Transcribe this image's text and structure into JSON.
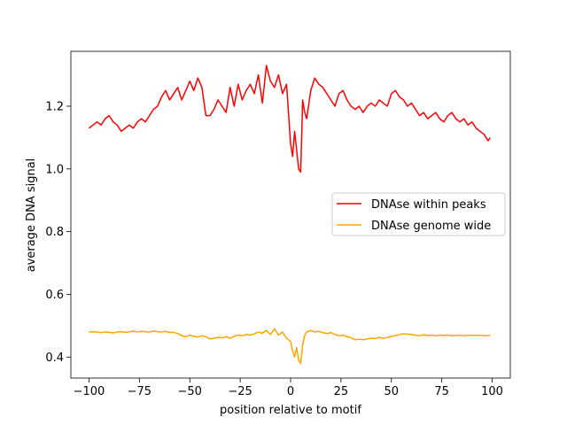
{
  "chart_data": {
    "type": "line",
    "title": "",
    "xlabel": "position relative to motif",
    "ylabel": "average DNA signal",
    "xlim": [
      -109,
      109
    ],
    "ylim": [
      0.333,
      1.375
    ],
    "xticks": [
      -100,
      -75,
      -50,
      -25,
      0,
      25,
      50,
      75,
      100
    ],
    "xtick_labels": [
      "−100",
      "−75",
      "−50",
      "−25",
      "0",
      "25",
      "50",
      "75",
      "100"
    ],
    "yticks": [
      0.4,
      0.6,
      0.8,
      1.0,
      1.2
    ],
    "ytick_labels": [
      "0.4",
      "0.6",
      "0.8",
      "1.0",
      "1.2"
    ],
    "grid": false,
    "legend_position": "center-right",
    "x": [
      -100,
      -98,
      -96,
      -94,
      -92,
      -90,
      -88,
      -86,
      -84,
      -82,
      -80,
      -78,
      -76,
      -74,
      -72,
      -70,
      -68,
      -66,
      -64,
      -62,
      -60,
      -58,
      -56,
      -54,
      -52,
      -50,
      -48,
      -46,
      -44,
      -42,
      -40,
      -38,
      -36,
      -34,
      -32,
      -30,
      -28,
      -26,
      -24,
      -22,
      -20,
      -18,
      -16,
      -14,
      -12,
      -10,
      -8,
      -6,
      -4,
      -2,
      0,
      1,
      2,
      3,
      4,
      5,
      6,
      7,
      8,
      10,
      12,
      14,
      16,
      18,
      20,
      22,
      24,
      26,
      28,
      30,
      32,
      34,
      36,
      38,
      40,
      42,
      44,
      46,
      48,
      50,
      52,
      54,
      56,
      58,
      60,
      62,
      64,
      66,
      68,
      70,
      72,
      74,
      76,
      78,
      80,
      82,
      84,
      86,
      88,
      90,
      92,
      94,
      96,
      98,
      99
    ],
    "series": [
      {
        "name": "DNAse within peaks",
        "color": "#ff0000",
        "values": [
          1.13,
          1.14,
          1.15,
          1.14,
          1.16,
          1.17,
          1.15,
          1.14,
          1.12,
          1.13,
          1.14,
          1.13,
          1.15,
          1.16,
          1.15,
          1.17,
          1.19,
          1.2,
          1.23,
          1.25,
          1.22,
          1.24,
          1.26,
          1.22,
          1.25,
          1.28,
          1.25,
          1.29,
          1.26,
          1.17,
          1.17,
          1.19,
          1.22,
          1.2,
          1.18,
          1.26,
          1.2,
          1.27,
          1.22,
          1.25,
          1.27,
          1.24,
          1.3,
          1.21,
          1.33,
          1.28,
          1.26,
          1.3,
          1.24,
          1.27,
          1.08,
          1.04,
          1.12,
          1.06,
          1.0,
          0.99,
          1.22,
          1.18,
          1.16,
          1.25,
          1.29,
          1.27,
          1.26,
          1.24,
          1.22,
          1.2,
          1.24,
          1.25,
          1.22,
          1.2,
          1.19,
          1.2,
          1.18,
          1.2,
          1.21,
          1.2,
          1.22,
          1.21,
          1.2,
          1.24,
          1.25,
          1.23,
          1.22,
          1.2,
          1.21,
          1.19,
          1.17,
          1.18,
          1.16,
          1.17,
          1.18,
          1.16,
          1.15,
          1.17,
          1.18,
          1.16,
          1.15,
          1.16,
          1.14,
          1.15,
          1.13,
          1.12,
          1.11,
          1.09,
          1.1
        ]
      },
      {
        "name": "DNAse genome wide",
        "color": "#ffa500",
        "values": [
          0.48,
          0.481,
          0.48,
          0.478,
          0.48,
          0.479,
          0.477,
          0.48,
          0.481,
          0.479,
          0.48,
          0.483,
          0.48,
          0.482,
          0.481,
          0.48,
          0.483,
          0.481,
          0.48,
          0.482,
          0.478,
          0.479,
          0.475,
          0.468,
          0.465,
          0.47,
          0.466,
          0.464,
          0.468,
          0.465,
          0.458,
          0.46,
          0.463,
          0.461,
          0.465,
          0.46,
          0.466,
          0.47,
          0.468,
          0.472,
          0.47,
          0.474,
          0.48,
          0.476,
          0.485,
          0.472,
          0.49,
          0.47,
          0.48,
          0.46,
          0.45,
          0.42,
          0.4,
          0.43,
          0.39,
          0.38,
          0.44,
          0.47,
          0.48,
          0.485,
          0.48,
          0.482,
          0.478,
          0.475,
          0.478,
          0.472,
          0.468,
          0.47,
          0.465,
          0.462,
          0.455,
          0.457,
          0.455,
          0.458,
          0.46,
          0.459,
          0.463,
          0.46,
          0.462,
          0.466,
          0.468,
          0.472,
          0.474,
          0.473,
          0.472,
          0.47,
          0.468,
          0.471,
          0.469,
          0.47,
          0.468,
          0.47,
          0.469,
          0.47,
          0.468,
          0.469,
          0.47,
          0.468,
          0.469,
          0.47,
          0.469,
          0.47,
          0.468,
          0.469,
          0.47
        ]
      }
    ]
  }
}
